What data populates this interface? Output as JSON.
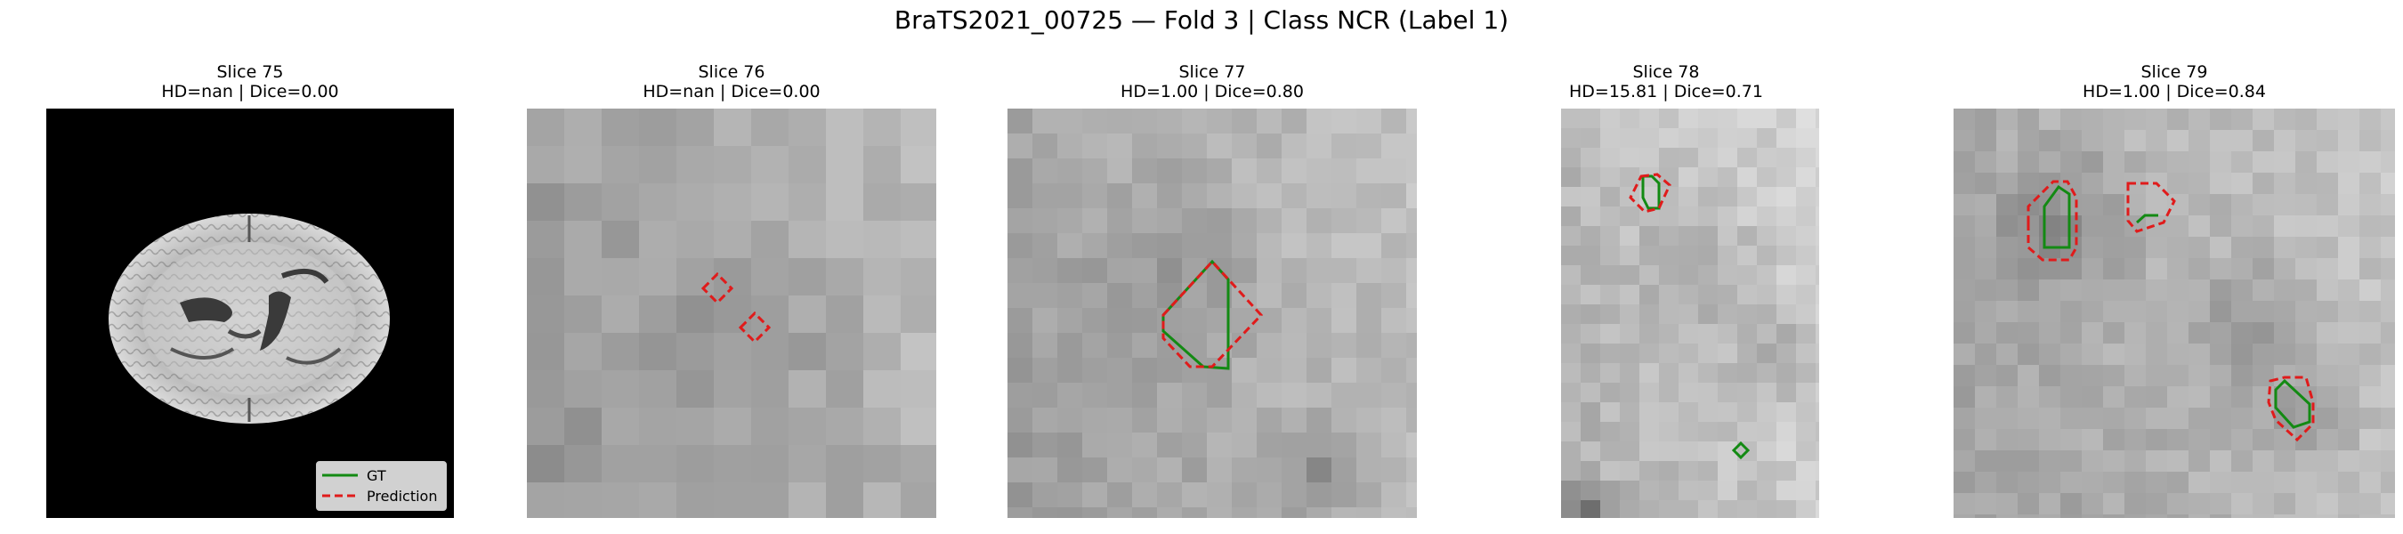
{
  "figure": {
    "title": "BraTS2021_00725 — Fold 3 | Class NCR (Label 1)"
  },
  "colors": {
    "gt": "#138a13",
    "prediction": "#e01b1b",
    "background": "#ffffff"
  },
  "legend": {
    "gt_label": "GT",
    "prediction_label": "Prediction",
    "placement": "lower-right"
  },
  "panels": [
    {
      "slice": "Slice 75",
      "metrics": "HD=nan | Dice=0.00",
      "view": "full-brain-axial"
    },
    {
      "slice": "Slice 76",
      "metrics": "HD=nan | Dice=0.00",
      "view": "zoomed-crop"
    },
    {
      "slice": "Slice 77",
      "metrics": "HD=1.00 | Dice=0.80",
      "view": "zoomed-crop"
    },
    {
      "slice": "Slice 78",
      "metrics": "HD=15.81 | Dice=0.71",
      "view": "zoomed-crop"
    },
    {
      "slice": "Slice 79",
      "metrics": "HD=1.00 | Dice=0.84",
      "view": "zoomed-crop"
    }
  ]
}
